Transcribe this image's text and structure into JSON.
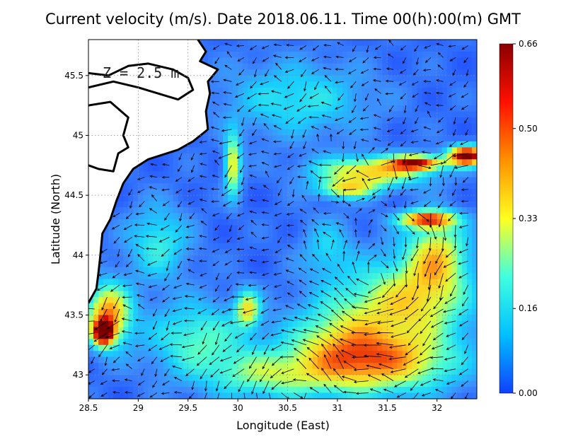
{
  "chart_data": {
    "type": "heatmap",
    "title": "Current velocity (m/s). Date 2018.06.11. Time 00(h):00(m) GMT",
    "xlabel": "Longitude (East)",
    "ylabel": "Latitude (North)",
    "annotation": "Z = 2.5 m",
    "xlim": [
      28.5,
      32.4
    ],
    "ylim": [
      42.8,
      45.8
    ],
    "x_ticks": [
      "28.5",
      "29",
      "29.5",
      "30",
      "30.5",
      "31",
      "31.5",
      "32"
    ],
    "y_ticks": [
      "43",
      "43.5",
      "44",
      "44.5",
      "45",
      "45.5"
    ],
    "grid": true,
    "colorbar": {
      "min": 0.0,
      "max": 0.66,
      "ticks": [
        "0.00",
        "0.16",
        "0.33",
        "0.50",
        "0.66"
      ],
      "colors": [
        "#1040ff",
        "#00c0ff",
        "#40ffe0",
        "#ffff20",
        "#ff9000",
        "#ff1000",
        "#8a0000"
      ]
    },
    "colorscale": [
      "#1a3fff",
      "#3d8bff",
      "#18d0ff",
      "#4dffd0",
      "#d8ff40",
      "#ffd020",
      "#ff6a10",
      "#d00000",
      "#7a0000"
    ],
    "background_speed": 0.05,
    "speed_features": [
      {
        "lon": 31.35,
        "lat": 44.7,
        "rlon": 0.55,
        "rlat": 0.12,
        "v": 0.36
      },
      {
        "lon": 31.8,
        "lat": 44.77,
        "rlon": 0.25,
        "rlat": 0.06,
        "v": 0.48
      },
      {
        "lon": 32.3,
        "lat": 44.83,
        "rlon": 0.18,
        "rlat": 0.08,
        "v": 0.64
      },
      {
        "lon": 31.1,
        "lat": 44.55,
        "rlon": 0.3,
        "rlat": 0.08,
        "v": 0.28
      },
      {
        "lon": 31.9,
        "lat": 44.3,
        "rlon": 0.28,
        "rlat": 0.07,
        "v": 0.44
      },
      {
        "lon": 32.0,
        "lat": 44.0,
        "rlon": 0.3,
        "rlat": 0.3,
        "v": 0.3
      },
      {
        "lon": 31.7,
        "lat": 43.6,
        "rlon": 0.6,
        "rlat": 0.35,
        "v": 0.32
      },
      {
        "lon": 31.5,
        "lat": 43.1,
        "rlon": 0.7,
        "rlat": 0.25,
        "v": 0.33
      },
      {
        "lon": 31.0,
        "lat": 43.25,
        "rlon": 0.5,
        "rlat": 0.35,
        "v": 0.24
      },
      {
        "lon": 30.3,
        "lat": 43.0,
        "rlon": 0.6,
        "rlat": 0.2,
        "v": 0.22
      },
      {
        "lon": 30.1,
        "lat": 43.55,
        "rlon": 0.12,
        "rlat": 0.15,
        "v": 0.3
      },
      {
        "lon": 29.95,
        "lat": 44.75,
        "rlon": 0.08,
        "rlat": 0.25,
        "v": 0.33
      },
      {
        "lon": 28.7,
        "lat": 43.5,
        "rlon": 0.22,
        "rlat": 0.25,
        "v": 0.42
      },
      {
        "lon": 28.65,
        "lat": 43.35,
        "rlon": 0.1,
        "rlat": 0.1,
        "v": 0.55
      },
      {
        "lon": 29.2,
        "lat": 44.1,
        "rlon": 0.3,
        "rlat": 0.3,
        "v": 0.17
      },
      {
        "lon": 30.9,
        "lat": 44.05,
        "rlon": 0.25,
        "rlat": 0.25,
        "v": 0.12
      },
      {
        "lon": 30.6,
        "lat": 45.3,
        "rlon": 0.7,
        "rlat": 0.3,
        "v": 0.15
      },
      {
        "lon": 29.6,
        "lat": 43.3,
        "rlon": 0.5,
        "rlat": 0.3,
        "v": 0.2
      }
    ],
    "vector_field": {
      "spacing_lon": 0.125,
      "spacing_lat": 0.1,
      "gyres": [
        {
          "lon": 31.4,
          "lat": 43.8,
          "strength": 1.0,
          "sense": "clockwise"
        },
        {
          "lon": 30.6,
          "lat": 43.1,
          "strength": 0.7,
          "sense": "counterclockwise"
        }
      ],
      "mean_flow_deg": 200
    },
    "coastline": [
      [
        [
          29.6,
          45.8
        ],
        [
          29.68,
          45.7
        ],
        [
          29.62,
          45.62
        ],
        [
          29.8,
          45.55
        ],
        [
          29.7,
          45.45
        ],
        [
          29.72,
          45.35
        ],
        [
          29.68,
          45.2
        ],
        [
          29.7,
          45.05
        ],
        [
          29.55,
          44.95
        ],
        [
          29.4,
          44.88
        ],
        [
          29.1,
          44.8
        ],
        [
          28.95,
          44.72
        ],
        [
          28.85,
          44.6
        ],
        [
          28.78,
          44.45
        ],
        [
          28.72,
          44.3
        ],
        [
          28.64,
          44.18
        ],
        [
          28.62,
          44.0
        ],
        [
          28.6,
          43.85
        ],
        [
          28.58,
          43.72
        ],
        [
          28.5,
          43.6
        ]
      ],
      [
        [
          28.5,
          45.4
        ],
        [
          28.75,
          45.45
        ],
        [
          29.0,
          45.4
        ],
        [
          29.2,
          45.35
        ],
        [
          29.4,
          45.3
        ],
        [
          29.55,
          45.38
        ],
        [
          29.5,
          45.48
        ],
        [
          29.35,
          45.55
        ],
        [
          29.1,
          45.6
        ],
        [
          28.9,
          45.58
        ],
        [
          28.7,
          45.5
        ],
        [
          28.5,
          45.52
        ]
      ],
      [
        [
          28.5,
          45.25
        ],
        [
          28.72,
          45.28
        ],
        [
          28.9,
          45.15
        ],
        [
          28.85,
          45.0
        ],
        [
          28.9,
          44.9
        ],
        [
          28.8,
          44.85
        ],
        [
          28.75,
          44.7
        ],
        [
          28.6,
          44.72
        ],
        [
          28.5,
          44.75
        ]
      ]
    ],
    "coastline_color": "#000000",
    "land_color": "#ffffff"
  }
}
